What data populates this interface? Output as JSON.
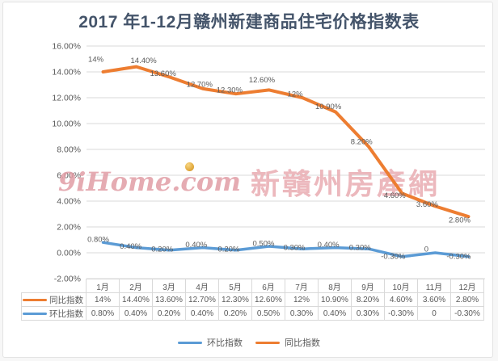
{
  "page": {
    "title": "2017 年1-12月赣州新建商品住宅价格指数表"
  },
  "watermark": {
    "brand": "9iHome.com",
    "site_name": "新贛州房產網",
    "pin_icon": "gold-pin-dot",
    "color": "#E9ABB1"
  },
  "colors": {
    "yoy_line": "#ED7D31",
    "mom_line": "#5B9BD5",
    "gridline": "#D9D9D9",
    "axis_text": "#595959",
    "title_text": "#44546A",
    "table_border": "#D9D9D9"
  },
  "chart_data": {
    "type": "line",
    "title": "2017 年1-12月赣州新建商品住宅价格指数表",
    "categories": [
      "1月",
      "2月",
      "3月",
      "4月",
      "5月",
      "6月",
      "7月",
      "8月",
      "9月",
      "10月",
      "11月",
      "12月"
    ],
    "series": [
      {
        "name": "同比指数",
        "color": "#ED7D31",
        "values": [
          14,
          14.4,
          13.6,
          12.7,
          12.3,
          12.6,
          12,
          10.9,
          8.2,
          4.6,
          3.6,
          2.8
        ],
        "labels": [
          "14%",
          "14.40%",
          "13.60%",
          "12.70%",
          "12.30%",
          "12.60%",
          "12%",
          "10.90%",
          "8.20%",
          "4.60%",
          "3.60%",
          "2.80%"
        ]
      },
      {
        "name": "环比指数",
        "color": "#5B9BD5",
        "values": [
          0.8,
          0.4,
          0.2,
          0.4,
          0.2,
          0.5,
          0.3,
          0.4,
          0.3,
          -0.3,
          0,
          -0.3
        ],
        "labels": [
          "0.80%",
          "0.40%",
          "0.20%",
          "0.40%",
          "0.20%",
          "0.50%",
          "0.30%",
          "0.40%",
          "0.30%",
          "-0.30%",
          "0",
          "-0.30%"
        ]
      }
    ],
    "y_ticks": [
      "16.00%",
      "14.00%",
      "12.00%",
      "10.00%",
      "8.00%",
      "6.00%",
      "4.00%",
      "2.00%",
      "0.00%",
      "-2.00%"
    ],
    "ylim": [
      -2,
      16
    ],
    "xlabel": "",
    "ylabel": "",
    "grid": true,
    "legend_position": "bottom",
    "data_table_shown": true
  },
  "legend": {
    "items": [
      {
        "label": "环比指数",
        "color": "#5B9BD5"
      },
      {
        "label": "同比指数",
        "color": "#ED7D31"
      }
    ]
  }
}
